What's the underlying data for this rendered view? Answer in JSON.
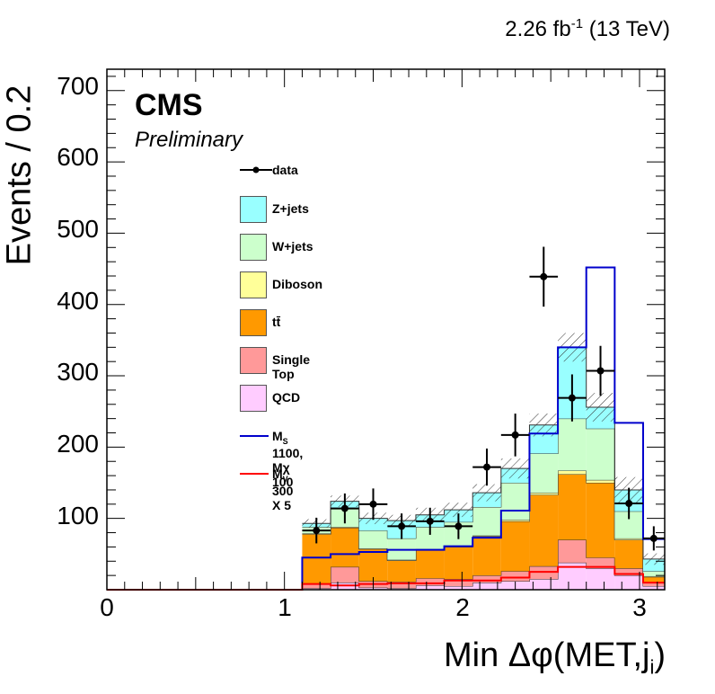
{
  "header": {
    "lumi": "2.26 fb",
    "lumi_sup": "-1",
    "energy": "(13 TeV)"
  },
  "labels": {
    "experiment": "CMS",
    "status": "Preliminary"
  },
  "chart_data": {
    "type": "bar",
    "xlabel": "Min Δφ(MET,j",
    "xlabel_sub": "i",
    "xlabel_close": ")",
    "ylabel": "Events / 0.2",
    "xlim": [
      0,
      3.14159
    ],
    "ylim": [
      0,
      730
    ],
    "x_ticks": [
      "0",
      "1",
      "2",
      "3"
    ],
    "x_tick_values": [
      0,
      1,
      2,
      3
    ],
    "y_ticks": [
      "100",
      "200",
      "300",
      "400",
      "500",
      "600",
      "700"
    ],
    "y_tick_values": [
      100,
      200,
      300,
      400,
      500,
      600,
      700
    ],
    "bin_edges": [
      1.1,
      1.26,
      1.42,
      1.58,
      1.74,
      1.9,
      2.06,
      2.22,
      2.38,
      2.54,
      2.7,
      2.86,
      3.02,
      3.14159
    ],
    "stack": [
      {
        "name": "QCD",
        "color": "#ffccff",
        "values": [
          2,
          10,
          3,
          2,
          6,
          5,
          10,
          12,
          15,
          38,
          30,
          20,
          5
        ]
      },
      {
        "name": "Single Top",
        "color": "#ff9999",
        "values": [
          6,
          22,
          9,
          9,
          10,
          10,
          10,
          14,
          18,
          32,
          15,
          10,
          5
        ]
      },
      {
        "name": "tt̄",
        "color": "#ff9900",
        "values": [
          70,
          55,
          45,
          30,
          40,
          45,
          55,
          70,
          100,
          92,
          105,
          40,
          8
        ]
      },
      {
        "name": "Diboson",
        "color": "#ffff99",
        "values": [
          1,
          1,
          1,
          1,
          1,
          1,
          1,
          2,
          3,
          5,
          4,
          2,
          1
        ]
      },
      {
        "name": "W+jets",
        "color": "#ccffcc",
        "values": [
          9,
          27,
          25,
          30,
          31,
          34,
          40,
          52,
          55,
          73,
          72,
          38,
          7
        ]
      },
      {
        "name": "Z+jets",
        "color": "#99ffff",
        "values": [
          5,
          9,
          17,
          25,
          17,
          17,
          20,
          20,
          40,
          100,
          30,
          30,
          17
        ]
      }
    ],
    "uncertainty": [
      6,
      8,
      8,
      8,
      10,
      10,
      12,
      14,
      16,
      20,
      20,
      18,
      8
    ],
    "data": [
      {
        "x": 1.18,
        "y": 83,
        "err": 18
      },
      {
        "x": 1.34,
        "y": 114,
        "err": 21
      },
      {
        "x": 1.5,
        "y": 120,
        "err": 22
      },
      {
        "x": 1.66,
        "y": 89,
        "err": 18
      },
      {
        "x": 1.82,
        "y": 96,
        "err": 19
      },
      {
        "x": 1.98,
        "y": 89,
        "err": 18
      },
      {
        "x": 2.14,
        "y": 172,
        "err": 26
      },
      {
        "x": 2.3,
        "y": 217,
        "err": 30
      },
      {
        "x": 2.46,
        "y": 439,
        "err": 42
      },
      {
        "x": 2.62,
        "y": 269,
        "err": 33
      },
      {
        "x": 2.78,
        "y": 307,
        "err": 35
      },
      {
        "x": 2.94,
        "y": 121,
        "err": 22
      },
      {
        "x": 3.08,
        "y": 72,
        "err": 17
      }
    ],
    "signal_ms": {
      "name": "M_S 1100, Mχ 100",
      "color": "#0000cc",
      "values": [
        45,
        50,
        53,
        56,
        56,
        61,
        73,
        111,
        219,
        340,
        452,
        234,
        71
      ]
    },
    "signal_mv": {
      "name": "M_V 300 X 5",
      "color": "#ff0000",
      "values": [
        8,
        6,
        8,
        9,
        9,
        13,
        13,
        17,
        25,
        32,
        32,
        22,
        10
      ]
    }
  },
  "legend": {
    "data": "data",
    "zjets": "Z+jets",
    "wjets": "W+jets",
    "diboson": "Diboson",
    "ttbar": "tt̄",
    "singletop": "Single Top",
    "qcd": "QCD",
    "ms_a": "M",
    "ms_sub": "S",
    "ms_b": " 1100, Mχ 100",
    "mv_a": "M",
    "mv_sub": "V",
    "mv_b": " 300 X 5"
  }
}
